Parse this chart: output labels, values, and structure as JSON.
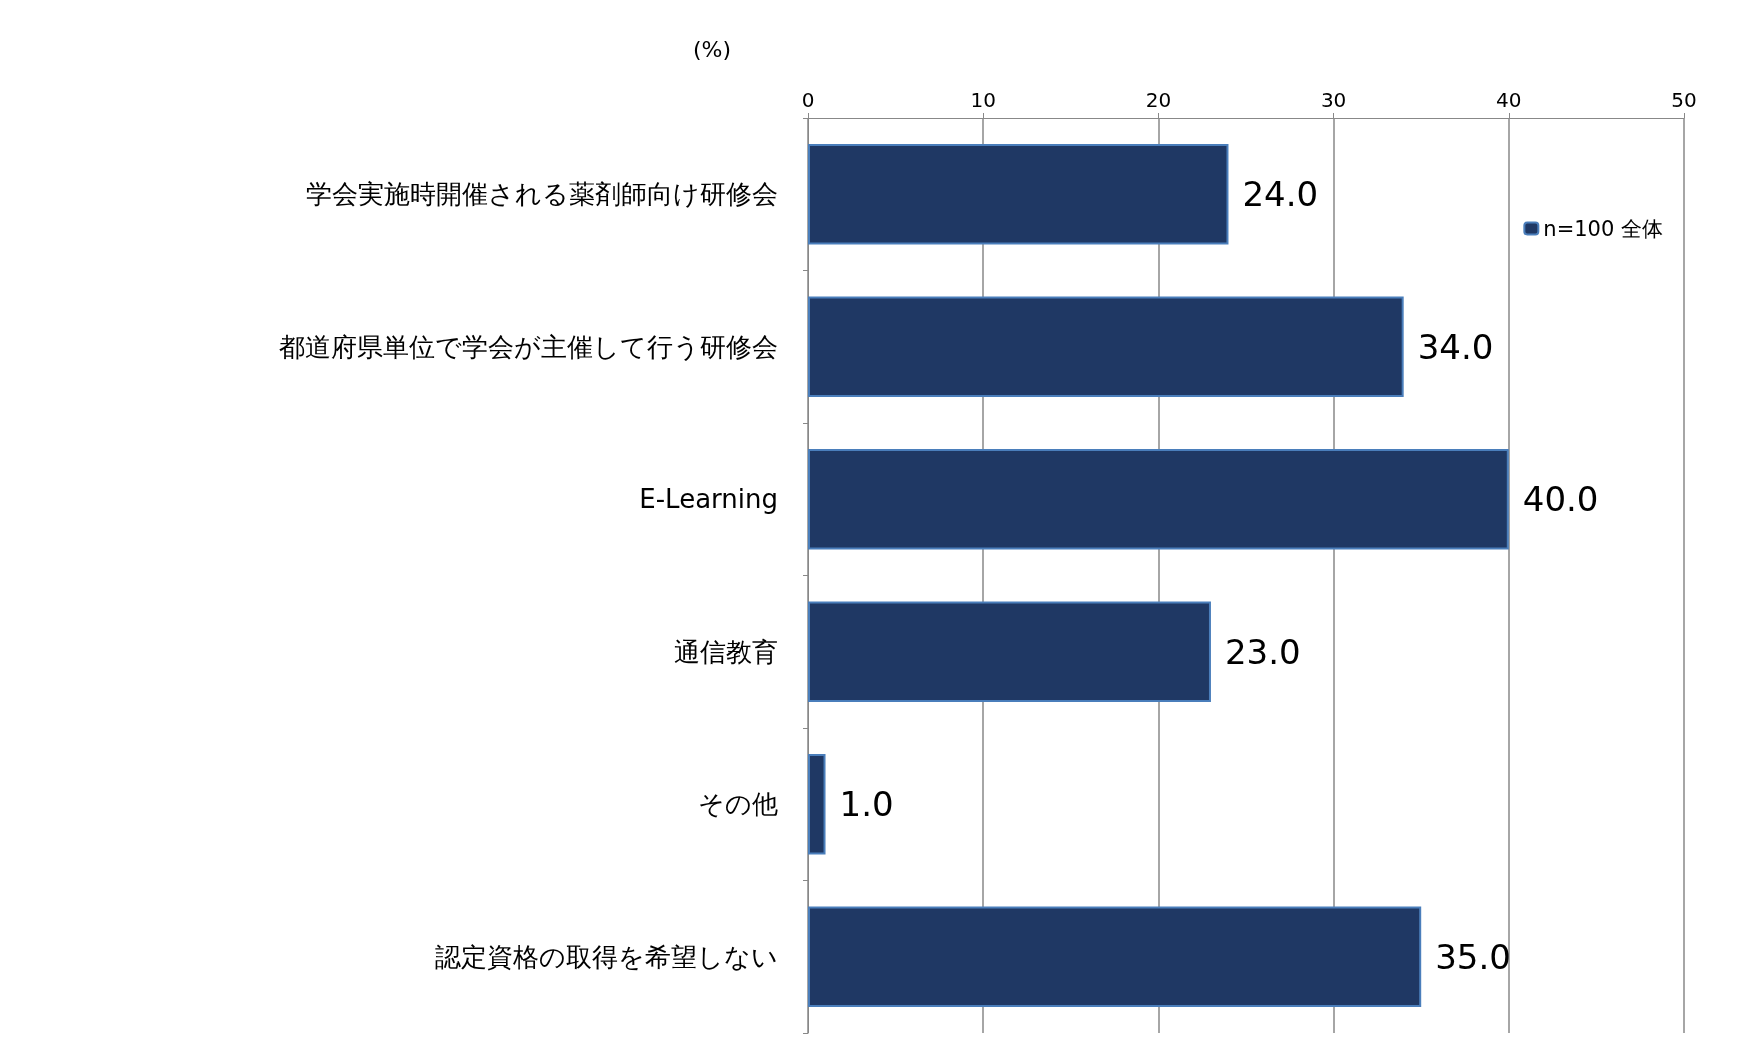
{
  "chart_data": {
    "type": "bar",
    "orientation": "horizontal",
    "xlabel": "(%)",
    "categories": [
      "学会実施時開催される薬剤師向け研修会",
      "都道府県単位で学会が主催して行う研修会",
      "E-Learning",
      "通信教育",
      "その他",
      "認定資格の取得を希望しない"
    ],
    "series": [
      {
        "name": "n=100 全体",
        "color": "#1f3864",
        "values": [
          24.0,
          34.0,
          40.0,
          23.0,
          1.0,
          35.0
        ],
        "value_labels": [
          "24.0",
          "34.0",
          "40.0",
          "23.0",
          "1.0",
          "35.0"
        ]
      }
    ],
    "xlim": [
      0,
      50
    ],
    "xticks": [
      0,
      10,
      20,
      30,
      40,
      50
    ],
    "grid": "x",
    "legend": "top right"
  }
}
